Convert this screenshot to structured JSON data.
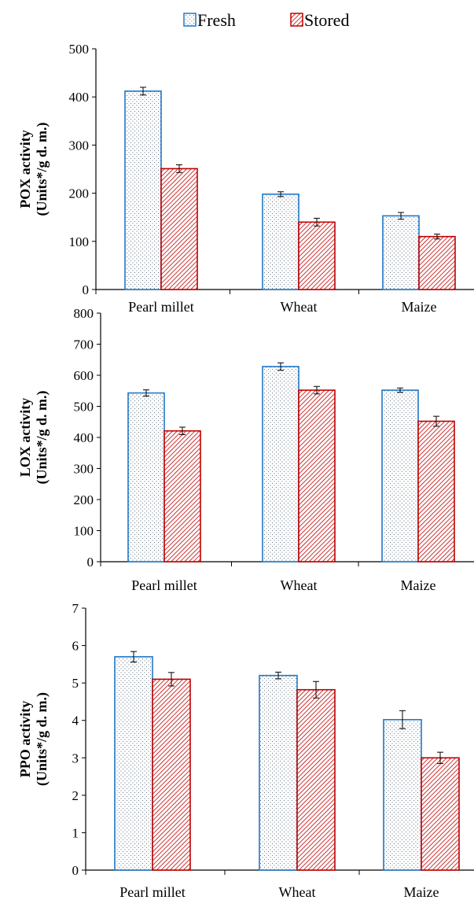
{
  "legend": {
    "items": [
      {
        "label": "Fresh",
        "color": "#1f78c8"
      },
      {
        "label": "Stored",
        "color": "#c00000"
      }
    ]
  },
  "chart_data": [
    {
      "type": "bar",
      "ylabel": [
        "POX activity",
        "(Units*/g d. m.)"
      ],
      "categories": [
        "Pearl millet",
        "Wheat",
        "Maize"
      ],
      "ylim": [
        0,
        500
      ],
      "yticks": [
        0,
        100,
        200,
        300,
        400,
        500
      ],
      "series": [
        {
          "name": "Fresh",
          "values": [
            412,
            198,
            153
          ],
          "errors": [
            8,
            5,
            7
          ]
        },
        {
          "name": "Stored",
          "values": [
            251,
            140,
            110
          ],
          "errors": [
            8,
            8,
            5
          ]
        }
      ]
    },
    {
      "type": "bar",
      "ylabel": [
        "LOX activity",
        "(Units*/g d. m.)"
      ],
      "categories": [
        "Pearl millet",
        "Wheat",
        "Maize"
      ],
      "ylim": [
        0,
        800
      ],
      "yticks": [
        0,
        100,
        200,
        300,
        400,
        500,
        600,
        700,
        800
      ],
      "series": [
        {
          "name": "Fresh",
          "values": [
            543,
            628,
            552
          ],
          "errors": [
            10,
            12,
            7
          ]
        },
        {
          "name": "Stored",
          "values": [
            421,
            552,
            452
          ],
          "errors": [
            12,
            12,
            16
          ]
        }
      ]
    },
    {
      "type": "bar",
      "ylabel": [
        "PPO activity",
        "(Units*/g d. m.)"
      ],
      "categories": [
        "Pearl millet",
        "Wheat",
        "Maize"
      ],
      "ylim": [
        0,
        7
      ],
      "yticks": [
        0,
        1,
        2,
        3,
        4,
        5,
        6,
        7
      ],
      "series": [
        {
          "name": "Fresh",
          "values": [
            5.7,
            5.2,
            4.02
          ],
          "errors": [
            0.14,
            0.09,
            0.24
          ]
        },
        {
          "name": "Stored",
          "values": [
            5.1,
            4.82,
            3.0
          ],
          "errors": [
            0.18,
            0.22,
            0.15
          ]
        }
      ]
    }
  ]
}
